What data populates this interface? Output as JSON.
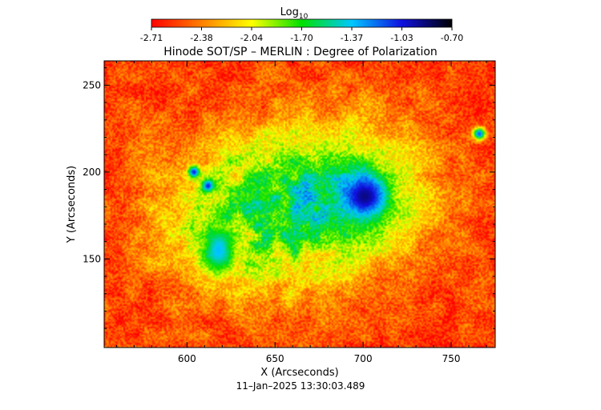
{
  "chart_data": {
    "type": "heatmap",
    "title": "Hinode SOT/SP – MERLIN : Degree of Polarization",
    "xlabel": "X (Arcseconds)",
    "ylabel": "Y (Arcseconds)",
    "xlim": [
      553,
      775
    ],
    "ylim": [
      99,
      264
    ],
    "xticks": [
      600,
      650,
      700,
      750
    ],
    "yticks": [
      150,
      200,
      250
    ],
    "grid": false,
    "colorbar": {
      "label_base": "Log",
      "label_sub": "10",
      "placement": "top",
      "colormap": "rainbow",
      "range": [
        -2.71,
        -0.7
      ],
      "tick_labels": [
        "-2.71",
        "-2.38",
        "-2.04",
        "-1.70",
        "-1.37",
        "-1.03",
        "-0.70"
      ],
      "colors": [
        "#ff0000",
        "#ff8000",
        "#ffff00",
        "#00e000",
        "#00c8ff",
        "#1010e0",
        "#000000"
      ]
    },
    "features": [
      {
        "name": "sunspot",
        "x": 701,
        "y": 186,
        "value": -0.9
      },
      {
        "name": "pore",
        "x": 604,
        "y": 200,
        "value": -1.05
      },
      {
        "name": "pore",
        "x": 612,
        "y": 192,
        "value": -1.05
      },
      {
        "name": "pore",
        "x": 766,
        "y": 222,
        "value": -1.15
      },
      {
        "name": "plage",
        "x": 618,
        "y": 155,
        "value": -1.35
      }
    ]
  },
  "footer": {
    "timestamp": "11–Jan–2025 13:30:03.489"
  }
}
